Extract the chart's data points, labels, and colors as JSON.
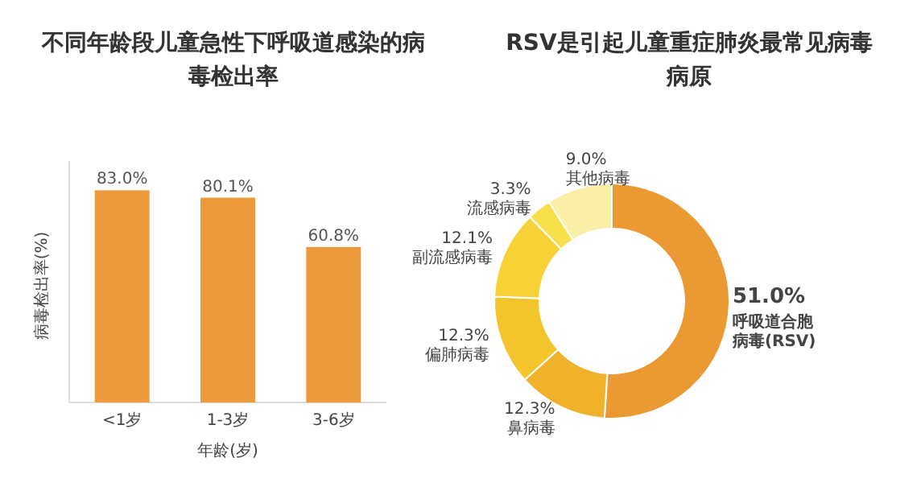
{
  "chart_data": [
    {
      "type": "bar",
      "title": "不同年龄段儿童急性下呼吸道感染的病毒检出率",
      "xlabel": "年龄(岁)",
      "ylabel": "病毒检出率(%)",
      "categories": [
        "<1岁",
        "1-3岁",
        "3-6岁"
      ],
      "values": [
        83.0,
        80.1,
        60.8
      ],
      "value_labels": [
        "83.0%",
        "80.1%",
        "60.8%"
      ],
      "color": "#ec9a3c",
      "grid": false
    },
    {
      "type": "donut",
      "title": "RSV是引起儿童重症肺炎最常见病毒病原",
      "categories": [
        "呼吸道合胞病毒(RSV)",
        "鼻病毒",
        "偏肺病毒",
        "副流感病毒",
        "流感病毒",
        "其他病毒"
      ],
      "values": [
        51.0,
        12.3,
        12.3,
        12.1,
        3.3,
        9.0
      ],
      "value_labels": [
        "51.0%",
        "12.3%",
        "12.3%",
        "12.1%",
        "3.3%",
        "9.0%"
      ],
      "colors": [
        "#eb9a33",
        "#f0b22a",
        "#f4c42c",
        "#f6d236",
        "#f8df4c",
        "#fbeea6"
      ]
    }
  ]
}
